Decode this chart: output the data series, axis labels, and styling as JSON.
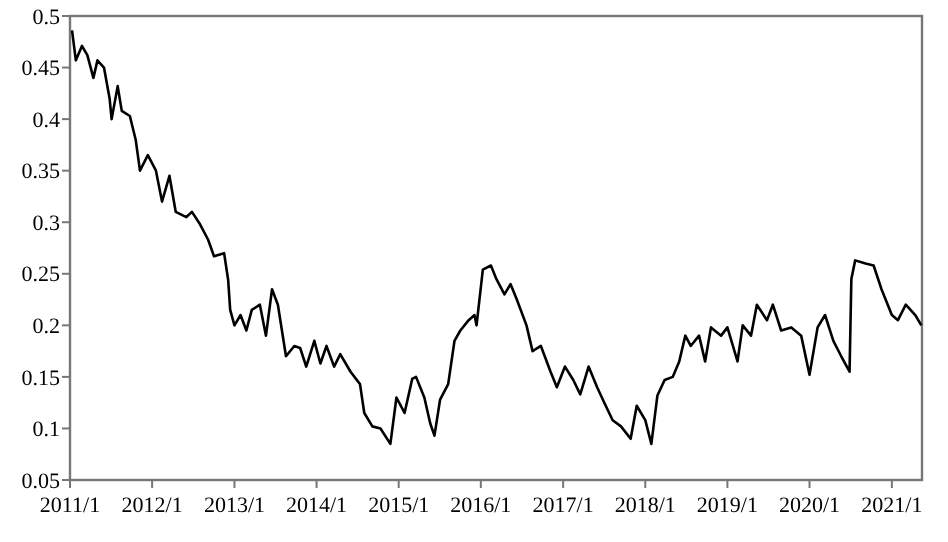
{
  "chart_data": {
    "type": "line",
    "x": [
      "2011-01-10",
      "2011-01-27",
      "2011-02-23",
      "2011-03-19",
      "2011-04-15",
      "2011-05-03",
      "2011-06-01",
      "2011-06-26",
      "2011-07-05",
      "2011-08-01",
      "2011-08-19",
      "2011-09-24",
      "2011-10-20",
      "2011-11-08",
      "2011-12-13",
      "2012-01-18",
      "2012-02-14",
      "2012-03-18",
      "2012-04-15",
      "2012-06-01",
      "2012-06-26",
      "2012-08-01",
      "2012-09-06",
      "2012-10-02",
      "2012-11-16",
      "2012-12-04",
      "2012-12-13",
      "2013-01-01",
      "2013-01-28",
      "2013-02-23",
      "2013-03-19",
      "2013-04-24",
      "2013-05-21",
      "2013-06-17",
      "2013-07-13",
      "2013-08-18",
      "2013-09-24",
      "2013-10-20",
      "2013-11-16",
      "2013-12-22",
      "2014-01-18",
      "2014-02-14",
      "2014-03-20",
      "2014-04-16",
      "2014-06-01",
      "2014-07-13",
      "2014-08-01",
      "2014-09-06",
      "2014-10-12",
      "2014-11-25",
      "2014-12-22",
      "2015-01-27",
      "2015-03-02",
      "2015-03-19",
      "2015-04-25",
      "2015-05-21",
      "2015-06-09",
      "2015-07-04",
      "2015-08-09",
      "2015-09-06",
      "2015-10-02",
      "2015-11-08",
      "2015-12-04",
      "2015-12-13",
      "2016-01-10",
      "2016-02-15",
      "2016-03-10",
      "2016-04-15",
      "2016-05-12",
      "2016-06-09",
      "2016-07-22",
      "2016-08-18",
      "2016-09-24",
      "2016-11-06",
      "2016-12-04",
      "2017-01-09",
      "2017-02-15",
      "2017-03-18",
      "2017-04-24",
      "2017-06-01",
      "2017-07-05",
      "2017-08-09",
      "2017-09-15",
      "2017-10-28",
      "2017-11-24",
      "2018-01-01",
      "2018-01-28",
      "2018-02-24",
      "2018-03-28",
      "2018-05-03",
      "2018-06-01",
      "2018-06-28",
      "2018-07-22",
      "2018-08-28",
      "2018-09-24",
      "2018-10-20",
      "2018-12-04",
      "2019-01-01",
      "2019-02-15",
      "2019-03-10",
      "2019-04-16",
      "2019-05-12",
      "2019-06-26",
      "2019-07-22",
      "2019-08-28",
      "2019-10-12",
      "2019-11-25",
      "2020-01-01",
      "2020-02-06",
      "2020-03-10",
      "2020-04-16",
      "2020-05-21",
      "2020-06-27",
      "2020-07-05",
      "2020-07-22",
      "2020-09-06",
      "2020-10-12",
      "2020-11-16",
      "2021-01-01",
      "2021-01-28",
      "2021-03-04",
      "2021-04-15",
      "2021-05-12"
    ],
    "series": [
      {
        "color": "#000000",
        "values": [
          0.486,
          0.457,
          0.471,
          0.462,
          0.44,
          0.457,
          0.45,
          0.42,
          0.4,
          0.432,
          0.408,
          0.403,
          0.38,
          0.35,
          0.365,
          0.35,
          0.32,
          0.345,
          0.31,
          0.305,
          0.31,
          0.298,
          0.283,
          0.267,
          0.27,
          0.244,
          0.215,
          0.2,
          0.21,
          0.195,
          0.215,
          0.22,
          0.19,
          0.235,
          0.22,
          0.17,
          0.18,
          0.178,
          0.16,
          0.185,
          0.163,
          0.18,
          0.16,
          0.172,
          0.155,
          0.143,
          0.115,
          0.102,
          0.1,
          0.085,
          0.13,
          0.115,
          0.148,
          0.15,
          0.13,
          0.105,
          0.093,
          0.128,
          0.143,
          0.185,
          0.195,
          0.205,
          0.21,
          0.2,
          0.254,
          0.258,
          0.245,
          0.23,
          0.24,
          0.225,
          0.2,
          0.175,
          0.18,
          0.155,
          0.14,
          0.16,
          0.147,
          0.133,
          0.16,
          0.14,
          0.124,
          0.108,
          0.102,
          0.09,
          0.122,
          0.108,
          0.085,
          0.132,
          0.147,
          0.15,
          0.165,
          0.19,
          0.18,
          0.19,
          0.165,
          0.198,
          0.19,
          0.198,
          0.165,
          0.2,
          0.19,
          0.22,
          0.205,
          0.22,
          0.195,
          0.198,
          0.19,
          0.152,
          0.198,
          0.21,
          0.185,
          0.17,
          0.155,
          0.245,
          0.263,
          0.26,
          0.258,
          0.235,
          0.21,
          0.205,
          0.22,
          0.21,
          0.2
        ]
      }
    ],
    "xlim": [
      "2011-01-01",
      "2021-05-15"
    ],
    "xticks": [
      {
        "value": "2011-01-01",
        "label": "2011/1"
      },
      {
        "value": "2012-01-01",
        "label": "2012/1"
      },
      {
        "value": "2013-01-01",
        "label": "2013/1"
      },
      {
        "value": "2014-01-01",
        "label": "2014/1"
      },
      {
        "value": "2015-01-01",
        "label": "2015/1"
      },
      {
        "value": "2016-01-01",
        "label": "2016/1"
      },
      {
        "value": "2017-01-01",
        "label": "2017/1"
      },
      {
        "value": "2018-01-01",
        "label": "2018/1"
      },
      {
        "value": "2019-01-01",
        "label": "2019/1"
      },
      {
        "value": "2020-01-01",
        "label": "2020/1"
      },
      {
        "value": "2021-01-01",
        "label": "2021/1"
      }
    ],
    "ylim": [
      0.05,
      0.5
    ],
    "yticks": [
      0.05,
      0.1,
      0.15,
      0.2,
      0.25,
      0.3,
      0.35,
      0.4,
      0.45,
      0.5
    ],
    "grid": false
  }
}
